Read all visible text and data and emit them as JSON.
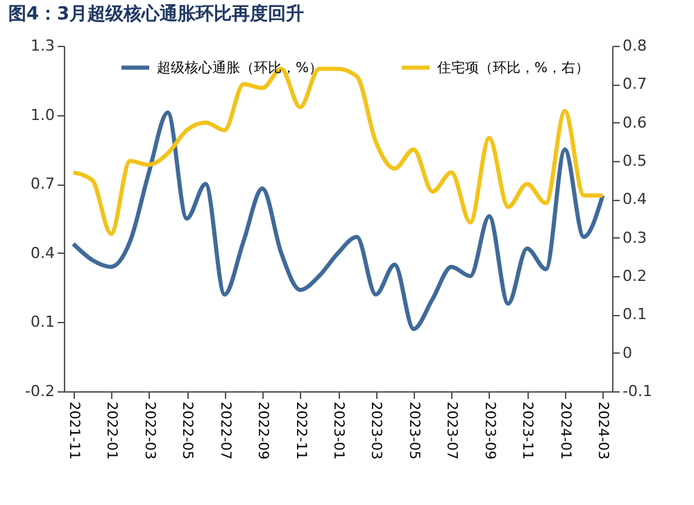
{
  "chart_data": {
    "type": "line",
    "title": "图4：3月超级核心通胀环比再度回升",
    "categories": [
      "2021-11",
      null,
      "2022-01",
      null,
      "2022-03",
      null,
      "2022-05",
      null,
      "2022-07",
      null,
      "2022-09",
      null,
      "2022-11",
      null,
      "2023-01",
      null,
      "2023-03",
      null,
      "2023-05",
      null,
      "2023-07",
      null,
      "2023-09",
      null,
      "2023-11",
      null,
      "2024-01",
      null,
      "2024-03"
    ],
    "series": [
      {
        "name": "超级核心通胀（环比，%）",
        "color": "#3f6a99",
        "values": [
          0.44,
          0.37,
          0.34,
          0.45,
          0.75,
          1.01,
          0.55,
          0.7,
          0.22,
          0.45,
          0.68,
          0.4,
          0.24,
          0.3,
          0.4,
          0.47,
          0.22,
          0.35,
          0.07,
          0.2,
          0.34,
          0.3,
          0.56,
          0.18,
          0.42,
          0.33,
          0.85,
          0.47,
          0.65
        ]
      },
      {
        "name": "住宅项（环比，%，右）",
        "color": "#f2c31b",
        "axis": "y2",
        "values": [
          0.47,
          0.45,
          0.31,
          0.5,
          0.49,
          0.52,
          0.58,
          0.6,
          0.58,
          0.7,
          0.69,
          0.74,
          0.64,
          0.74,
          0.74,
          0.72,
          0.55,
          0.48,
          0.53,
          0.42,
          0.47,
          0.34,
          0.56,
          0.38,
          0.44,
          0.39,
          0.63,
          0.41,
          0.41
        ]
      }
    ],
    "ylim": [
      -0.2,
      1.3
    ],
    "yticks": [
      -0.2,
      0.1,
      0.4,
      0.7,
      {
        "value": 1,
        "label": "1.0"
      },
      1.3
    ],
    "y2lim": [
      -0.1,
      0.8
    ],
    "y2ticks": [
      -0.1,
      0,
      0.1,
      0.2,
      0.3,
      0.4,
      0.5,
      0.6,
      0.7,
      0.8
    ],
    "grid": false,
    "legend": "top",
    "line_style": "solid",
    "marker": "none"
  }
}
